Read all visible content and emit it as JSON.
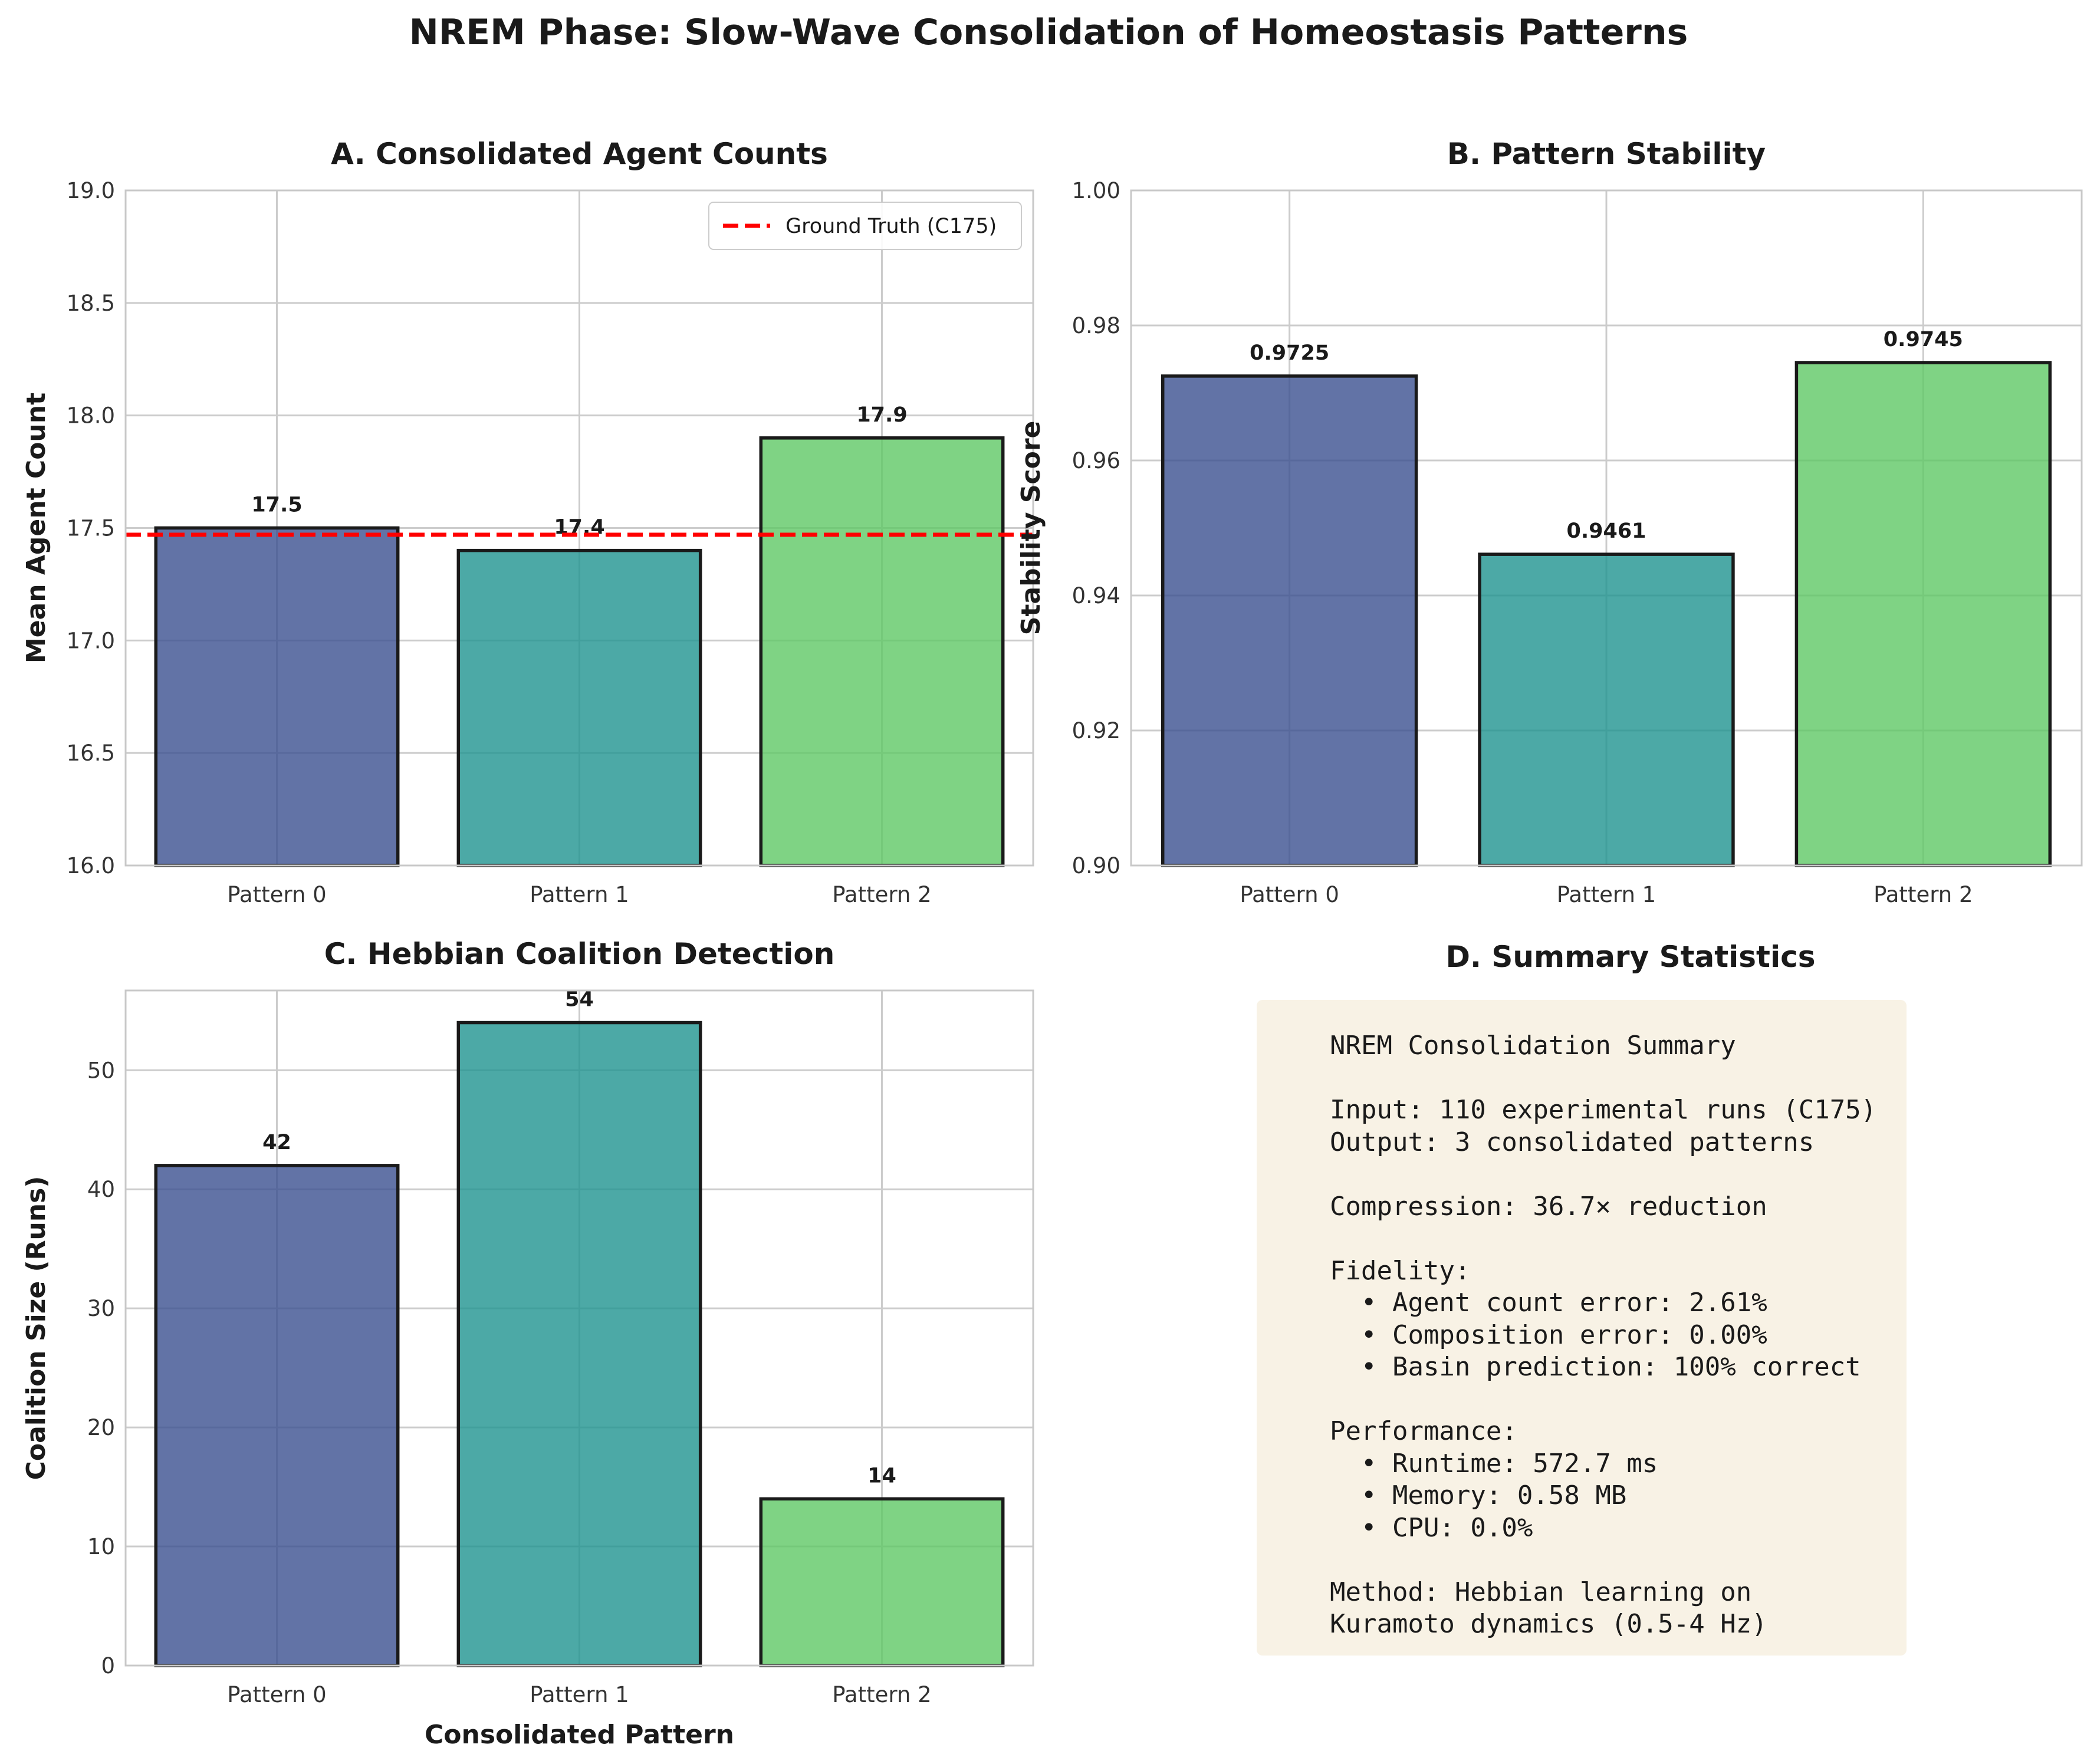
{
  "figure": {
    "title": "NREM Phase: Slow-Wave Consolidation of Homeostasis Patterns"
  },
  "chart_data": [
    {
      "type": "bar",
      "title": "A. Consolidated Agent Counts",
      "categories": [
        "Pattern 0",
        "Pattern 1",
        "Pattern 2"
      ],
      "values": [
        17.5,
        17.4,
        17.9
      ],
      "value_labels": [
        "17.5",
        "17.4",
        "17.9"
      ],
      "colors": [
        "#3b5090",
        "#1f9490",
        "#5fc865"
      ],
      "xlabel": "",
      "ylabel": "Mean Agent Count",
      "ylim": [
        16.0,
        19.0
      ],
      "yticks": [
        16.0,
        16.5,
        17.0,
        17.5,
        18.0,
        18.5,
        19.0
      ],
      "ytick_labels": [
        "16.0",
        "16.5",
        "17.0",
        "17.5",
        "18.0",
        "18.5",
        "19.0"
      ],
      "reference_line": {
        "y": 17.47,
        "label": "Ground Truth (C175)",
        "color": "#ff0000"
      },
      "legend": {
        "position": "top-right",
        "entries": [
          "Ground Truth (C175)"
        ]
      },
      "grid": true
    },
    {
      "type": "bar",
      "title": "B. Pattern Stability",
      "categories": [
        "Pattern 0",
        "Pattern 1",
        "Pattern 2"
      ],
      "values": [
        0.9725,
        0.9461,
        0.9745
      ],
      "value_labels": [
        "0.9725",
        "0.9461",
        "0.9745"
      ],
      "colors": [
        "#3b5090",
        "#1f9490",
        "#5fc865"
      ],
      "xlabel": "",
      "ylabel": "Stability Score",
      "ylim": [
        0.9,
        1.0
      ],
      "yticks": [
        0.9,
        0.92,
        0.94,
        0.96,
        0.98,
        1.0
      ],
      "ytick_labels": [
        "0.90",
        "0.92",
        "0.94",
        "0.96",
        "0.98",
        "1.00"
      ],
      "grid": true
    },
    {
      "type": "bar",
      "title": "C. Hebbian Coalition Detection",
      "categories": [
        "Pattern 0",
        "Pattern 1",
        "Pattern 2"
      ],
      "values": [
        42,
        54,
        14
      ],
      "value_labels": [
        "42",
        "54",
        "14"
      ],
      "colors": [
        "#3b5090",
        "#1f9490",
        "#5fc865"
      ],
      "xlabel": "Consolidated Pattern",
      "ylabel": "Coalition Size (Runs)",
      "ylim": [
        0,
        56.7
      ],
      "yticks": [
        0,
        10,
        20,
        30,
        40,
        50
      ],
      "ytick_labels": [
        "0",
        "10",
        "20",
        "30",
        "40",
        "50"
      ],
      "grid": true
    }
  ],
  "summary": {
    "title": "D. Summary Statistics",
    "lines": [
      "NREM Consolidation Summary",
      "",
      "Input: 110 experimental runs (C175)",
      "Output: 3 consolidated patterns",
      "",
      "Compression: 36.7× reduction",
      "",
      "Fidelity:",
      "  • Agent count error: 2.61%",
      "  • Composition error: 0.00%",
      "  • Basin prediction: 100% correct",
      "",
      "Performance:",
      "  • Runtime: 572.7 ms",
      "  • Memory: 0.58 MB",
      "  • CPU: 0.0%",
      "",
      "Method: Hebbian learning on",
      "Kuramoto dynamics (0.5-4 Hz)"
    ]
  }
}
